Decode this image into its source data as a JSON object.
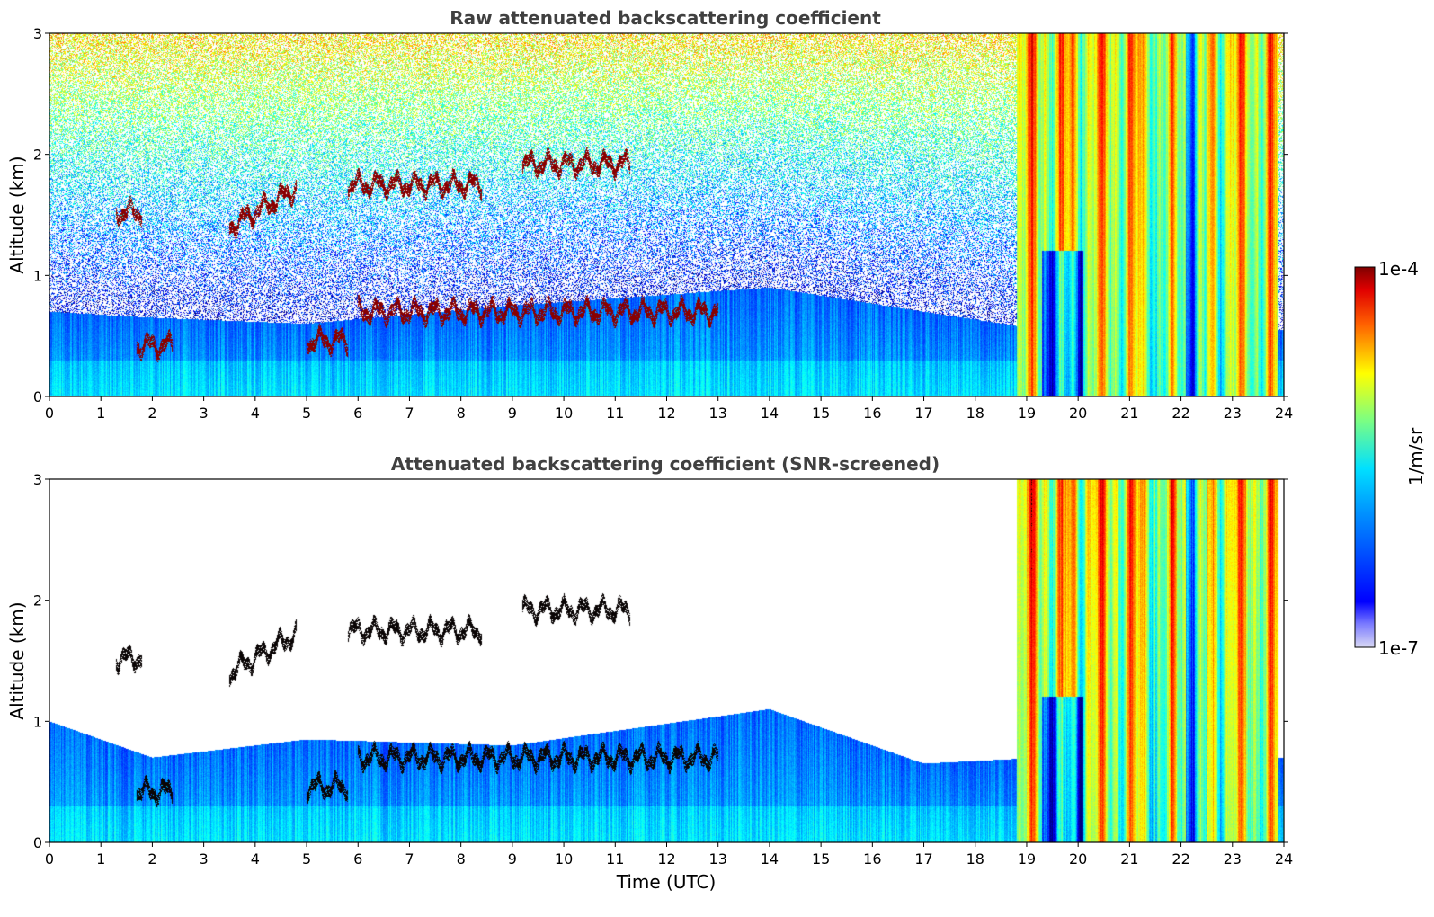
{
  "chart_data": [
    {
      "type": "heatmap",
      "title": "Raw attenuated backscattering coefficient",
      "xlabel": "",
      "ylabel": "Altitude (km)",
      "xlim": [
        0,
        24
      ],
      "ylim": [
        0,
        3
      ],
      "xticks": [
        0,
        1,
        2,
        3,
        4,
        5,
        6,
        7,
        8,
        9,
        10,
        11,
        12,
        13,
        14,
        15,
        16,
        17,
        18,
        19,
        20,
        21,
        22,
        23,
        24
      ],
      "yticks": [
        0,
        1,
        2,
        3
      ],
      "screened": false,
      "boundary_layer_top_km": [
        [
          0,
          0.7
        ],
        [
          2,
          0.65
        ],
        [
          5,
          0.6
        ],
        [
          9,
          0.75
        ],
        [
          14,
          0.9
        ],
        [
          17,
          0.7
        ],
        [
          19.3,
          0.55
        ]
      ],
      "cloud_layers": [
        {
          "t_start": 1.3,
          "t_end": 1.8,
          "alt_km": 1.52
        },
        {
          "t_start": 1.7,
          "t_end": 2.4,
          "alt_km": 0.42
        },
        {
          "t_start": 3.5,
          "t_end": 4.8,
          "alt_km_start": 1.4,
          "alt_km_end": 1.72
        },
        {
          "t_start": 5.0,
          "t_end": 5.8,
          "alt_km": 0.46
        },
        {
          "t_start": 5.8,
          "t_end": 8.4,
          "alt_km": 1.75
        },
        {
          "t_start": 9.2,
          "t_end": 11.3,
          "alt_km": 1.92
        },
        {
          "t_start": 6.0,
          "t_end": 13.0,
          "alt_km": 0.7
        }
      ],
      "high_signal_periods_utc": [
        [
          18.8,
          23.9
        ]
      ]
    },
    {
      "type": "heatmap",
      "title": "Attenuated backscattering coefficient (SNR-screened)",
      "xlabel": "Time (UTC)",
      "ylabel": "Altitude (km)",
      "xlim": [
        0,
        24
      ],
      "ylim": [
        0,
        3
      ],
      "xticks": [
        0,
        1,
        2,
        3,
        4,
        5,
        6,
        7,
        8,
        9,
        10,
        11,
        12,
        13,
        14,
        15,
        16,
        17,
        18,
        19,
        20,
        21,
        22,
        23,
        24
      ],
      "yticks": [
        0,
        1,
        2,
        3
      ],
      "screened": true,
      "boundary_layer_top_km": [
        [
          0,
          1.0
        ],
        [
          2,
          0.7
        ],
        [
          5,
          0.85
        ],
        [
          9,
          0.8
        ],
        [
          14,
          1.1
        ],
        [
          17,
          0.65
        ],
        [
          19.3,
          0.7
        ]
      ],
      "cloud_layers": [
        {
          "t_start": 1.3,
          "t_end": 1.8,
          "alt_km": 1.52
        },
        {
          "t_start": 1.7,
          "t_end": 2.4,
          "alt_km": 0.42
        },
        {
          "t_start": 3.5,
          "t_end": 4.8,
          "alt_km_start": 1.4,
          "alt_km_end": 1.72
        },
        {
          "t_start": 5.0,
          "t_end": 5.8,
          "alt_km": 0.46
        },
        {
          "t_start": 5.8,
          "t_end": 8.4,
          "alt_km": 1.75
        },
        {
          "t_start": 9.2,
          "t_end": 11.3,
          "alt_km": 1.92
        },
        {
          "t_start": 6.0,
          "t_end": 13.0,
          "alt_km": 0.7
        }
      ],
      "high_signal_periods_utc": [
        [
          18.8,
          23.9
        ]
      ]
    }
  ],
  "colorbar": {
    "label": "1/m/sr",
    "min_label": "1e-7",
    "max_label": "1e-4",
    "min": 1e-07,
    "max": 0.0001,
    "scale": "log",
    "colormap": "jet"
  }
}
